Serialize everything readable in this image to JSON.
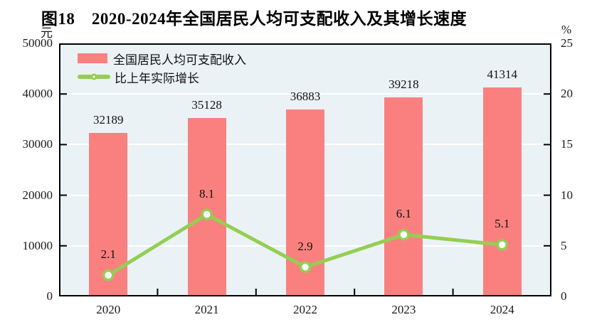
{
  "title": "图18　2020-2024年全国居民人均可支配收入及其增长速度",
  "left_axis_unit": "元",
  "right_axis_unit": "%",
  "legend": [
    {
      "label": "全国居民人均可支配收入",
      "swatch": "bar",
      "color": "#FA8080"
    },
    {
      "label": "比上年实际增长",
      "swatch": "line",
      "color": "#94CE52"
    }
  ],
  "chart_data": {
    "type": "bar+line",
    "title": "图18　2020-2024年全国居民人均可支配收入及其增长速度",
    "categories": [
      "2020",
      "2021",
      "2022",
      "2023",
      "2024"
    ],
    "series": [
      {
        "name": "全国居民人均可支配收入",
        "type": "bar",
        "axis": "left",
        "unit": "元",
        "color": "#FA8080",
        "values": [
          32189,
          35128,
          36883,
          39218,
          41314
        ]
      },
      {
        "name": "比上年实际增长",
        "type": "line",
        "axis": "right",
        "unit": "%",
        "color": "#94CE52",
        "marker": "open-circle",
        "values": [
          2.1,
          8.1,
          2.9,
          6.1,
          5.1
        ]
      }
    ],
    "left_axis": {
      "unit": "元",
      "min": 0,
      "max": 50000,
      "step": 10000,
      "ticks": [
        0,
        10000,
        20000,
        30000,
        40000,
        50000
      ]
    },
    "right_axis": {
      "unit": "%",
      "min": 0,
      "max": 25,
      "step": 5,
      "ticks": [
        0,
        5,
        10,
        15,
        20,
        25
      ]
    },
    "grid": true,
    "grid_color": "#ffffff",
    "plot_background": "#EAF2F6",
    "legend_position": "top-left"
  }
}
